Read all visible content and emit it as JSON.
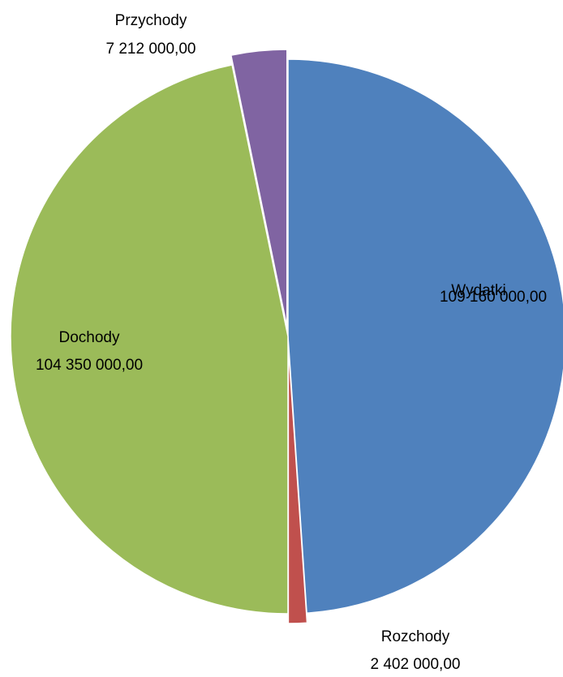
{
  "chart_data": {
    "type": "pie",
    "slices": [
      {
        "label": "Wydatki",
        "value": 109160000,
        "value_text": "109 160 000,00",
        "color": "#4F81BD",
        "exploded": false
      },
      {
        "label": "Rozchody",
        "value": 2402000,
        "value_text": "2 402 000,00",
        "color": "#C0504D",
        "exploded": true
      },
      {
        "label": "Dochody",
        "value": 104350000,
        "value_text": "104 350 000,00",
        "color": "#9BBB59",
        "exploded": false
      },
      {
        "label": "Przychody",
        "value": 7212000,
        "value_text": "7 212 000,00",
        "color": "#8064A2",
        "exploded": true
      }
    ],
    "start_angle": "12 o'clock",
    "direction": "clockwise",
    "legend": "none",
    "data_labels": "outside-or-inside, category name and value on two lines"
  }
}
